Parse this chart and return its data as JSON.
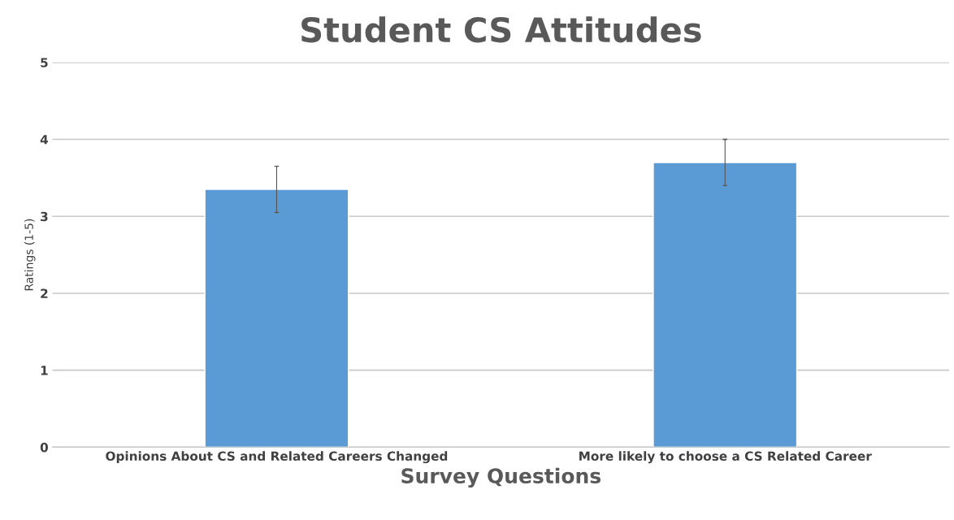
{
  "chart_data": {
    "type": "bar",
    "title": "Student CS Attitudes",
    "xlabel": "Survey Questions",
    "ylabel": "Ratings (1-5)",
    "categories": [
      "Opinions About CS and Related Careers Changed",
      "More likely to choose a CS Related Career"
    ],
    "values": [
      3.35,
      3.7
    ],
    "errors": [
      0.3,
      0.3
    ],
    "color": "#5b9bd5",
    "ylim": [
      0,
      5
    ],
    "yticks": [
      0,
      1,
      2,
      3,
      4,
      5
    ],
    "grid": "y"
  }
}
